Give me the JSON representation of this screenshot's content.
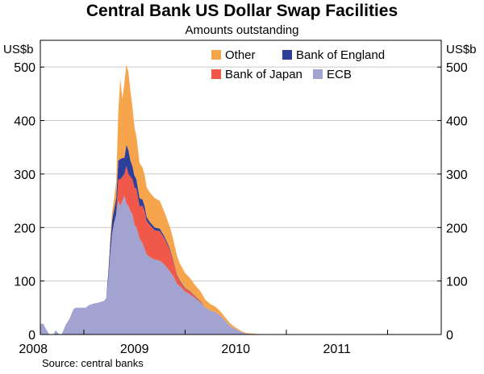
{
  "chart_data": {
    "type": "area",
    "stacked": true,
    "title": "Central Bank US Dollar Swap Facilities",
    "subtitle": "Amounts outstanding",
    "y_unit_left": "US$b",
    "y_unit_right": "US$b",
    "ylim": [
      0,
      550
    ],
    "yticks": [
      0,
      100,
      200,
      300,
      400,
      500
    ],
    "xlim": [
      2007.57,
      2011.53
    ],
    "xtick_boundaries": [
      2008.0,
      2009.0,
      2010.0,
      2011.0
    ],
    "xtick_labels": [
      "2008",
      "2009",
      "2010",
      "2011"
    ],
    "xtick_label_positions": [
      2007.5,
      2008.5,
      2009.5,
      2010.5
    ],
    "grid": "horizontal",
    "legend_position": "top-right",
    "source": "Source: central banks",
    "x": [
      2007.57,
      2007.6,
      2007.62,
      2007.66,
      2007.7,
      2007.72,
      2007.76,
      2007.78,
      2007.82,
      2007.86,
      2007.88,
      2007.9,
      2007.92,
      2007.96,
      2008.0,
      2008.02,
      2008.05,
      2008.1,
      2008.15,
      2008.2,
      2008.22,
      2008.24,
      2008.26,
      2008.28,
      2008.3,
      2008.32,
      2008.34,
      2008.36,
      2008.38,
      2008.4,
      2008.42,
      2008.44,
      2008.46,
      2008.48,
      2008.5,
      2008.52,
      2008.55,
      2008.58,
      2008.6,
      2008.62,
      2008.65,
      2008.7,
      2008.75,
      2008.8,
      2008.85,
      2008.88,
      2008.92,
      2008.95,
      2009.0,
      2009.05,
      2009.1,
      2009.15,
      2009.2,
      2009.25,
      2009.3,
      2009.35,
      2009.4,
      2009.45,
      2009.5,
      2009.55,
      2009.6,
      2009.7,
      2009.8,
      2009.9,
      2010.0,
      2010.2,
      2010.4,
      2010.6,
      2010.8,
      2011.0,
      2011.2,
      2011.4,
      2011.53
    ],
    "series": [
      {
        "name": "ECB",
        "color": "#a3a3d2",
        "values": [
          20,
          20,
          12,
          0,
          0,
          8,
          0,
          0,
          18,
          30,
          40,
          48,
          50,
          50,
          50,
          50,
          55,
          58,
          60,
          63,
          68,
          100,
          150,
          190,
          210,
          225,
          250,
          240,
          250,
          260,
          245,
          240,
          230,
          225,
          205,
          200,
          180,
          170,
          160,
          150,
          145,
          140,
          138,
          130,
          118,
          110,
          95,
          90,
          80,
          75,
          68,
          60,
          50,
          45,
          42,
          35,
          25,
          15,
          10,
          5,
          2,
          0,
          0,
          0,
          0,
          0,
          0,
          0,
          0,
          0,
          0,
          0,
          0
        ]
      },
      {
        "name": "Bank of Japan",
        "color": "#f0584a",
        "values": [
          0,
          0,
          0,
          0,
          0,
          0,
          0,
          0,
          0,
          0,
          0,
          0,
          0,
          0,
          0,
          0,
          0,
          0,
          0,
          0,
          0,
          0,
          0,
          0,
          0,
          0,
          40,
          50,
          45,
          40,
          70,
          60,
          65,
          65,
          70,
          72,
          60,
          70,
          70,
          62,
          60,
          55,
          55,
          48,
          40,
          30,
          15,
          8,
          6,
          5,
          3,
          2,
          0,
          0,
          0,
          0,
          0,
          0,
          0,
          0,
          0,
          0,
          0,
          0,
          0,
          0,
          0,
          0,
          0,
          0,
          0,
          0,
          0
        ]
      },
      {
        "name": "Bank of England",
        "color": "#2e3f99",
        "values": [
          0,
          0,
          0,
          0,
          0,
          0,
          0,
          0,
          0,
          0,
          0,
          0,
          0,
          0,
          0,
          0,
          0,
          0,
          0,
          0,
          0,
          12,
          20,
          25,
          25,
          30,
          35,
          38,
          35,
          30,
          40,
          45,
          30,
          25,
          22,
          18,
          15,
          12,
          10,
          8,
          6,
          5,
          5,
          4,
          3,
          2,
          2,
          2,
          1,
          1,
          1,
          1,
          0,
          0,
          0,
          0,
          0,
          0,
          0,
          0,
          0,
          0,
          0,
          0,
          0,
          0,
          0,
          0,
          0,
          0,
          0,
          0,
          0
        ]
      },
      {
        "name": "Other",
        "color": "#f6a54c",
        "values": [
          0,
          0,
          0,
          0,
          0,
          0,
          0,
          0,
          0,
          0,
          0,
          0,
          0,
          0,
          0,
          0,
          0,
          0,
          0,
          0,
          0,
          0,
          10,
          15,
          20,
          30,
          90,
          150,
          110,
          140,
          150,
          145,
          130,
          110,
          90,
          80,
          65,
          60,
          58,
          55,
          55,
          55,
          52,
          45,
          40,
          38,
          35,
          32,
          28,
          24,
          20,
          18,
          15,
          12,
          10,
          8,
          6,
          5,
          3,
          2,
          1,
          1,
          0,
          0,
          0,
          0,
          0,
          0,
          0,
          0,
          0,
          0,
          0
        ]
      }
    ]
  }
}
